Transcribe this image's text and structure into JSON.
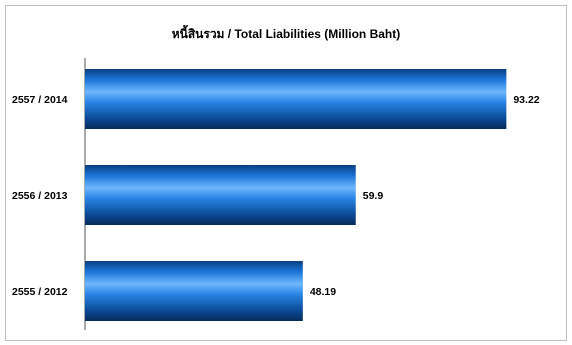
{
  "chart_data": {
    "type": "bar",
    "orientation": "horizontal",
    "title": "หนี้สินรวม / Total Liabilities (Million Baht)",
    "categories": [
      "2557 / 2014",
      "2556 / 2013",
      "2555 / 2012"
    ],
    "values": [
      93.22,
      59.9,
      48.19
    ],
    "value_labels": [
      "93.22",
      "59.9",
      "48.19"
    ],
    "xlabel": "",
    "ylabel": "",
    "xlim": [
      0,
      100
    ],
    "grid": false,
    "legend": "none",
    "bar_color": "#1a6fd0"
  }
}
